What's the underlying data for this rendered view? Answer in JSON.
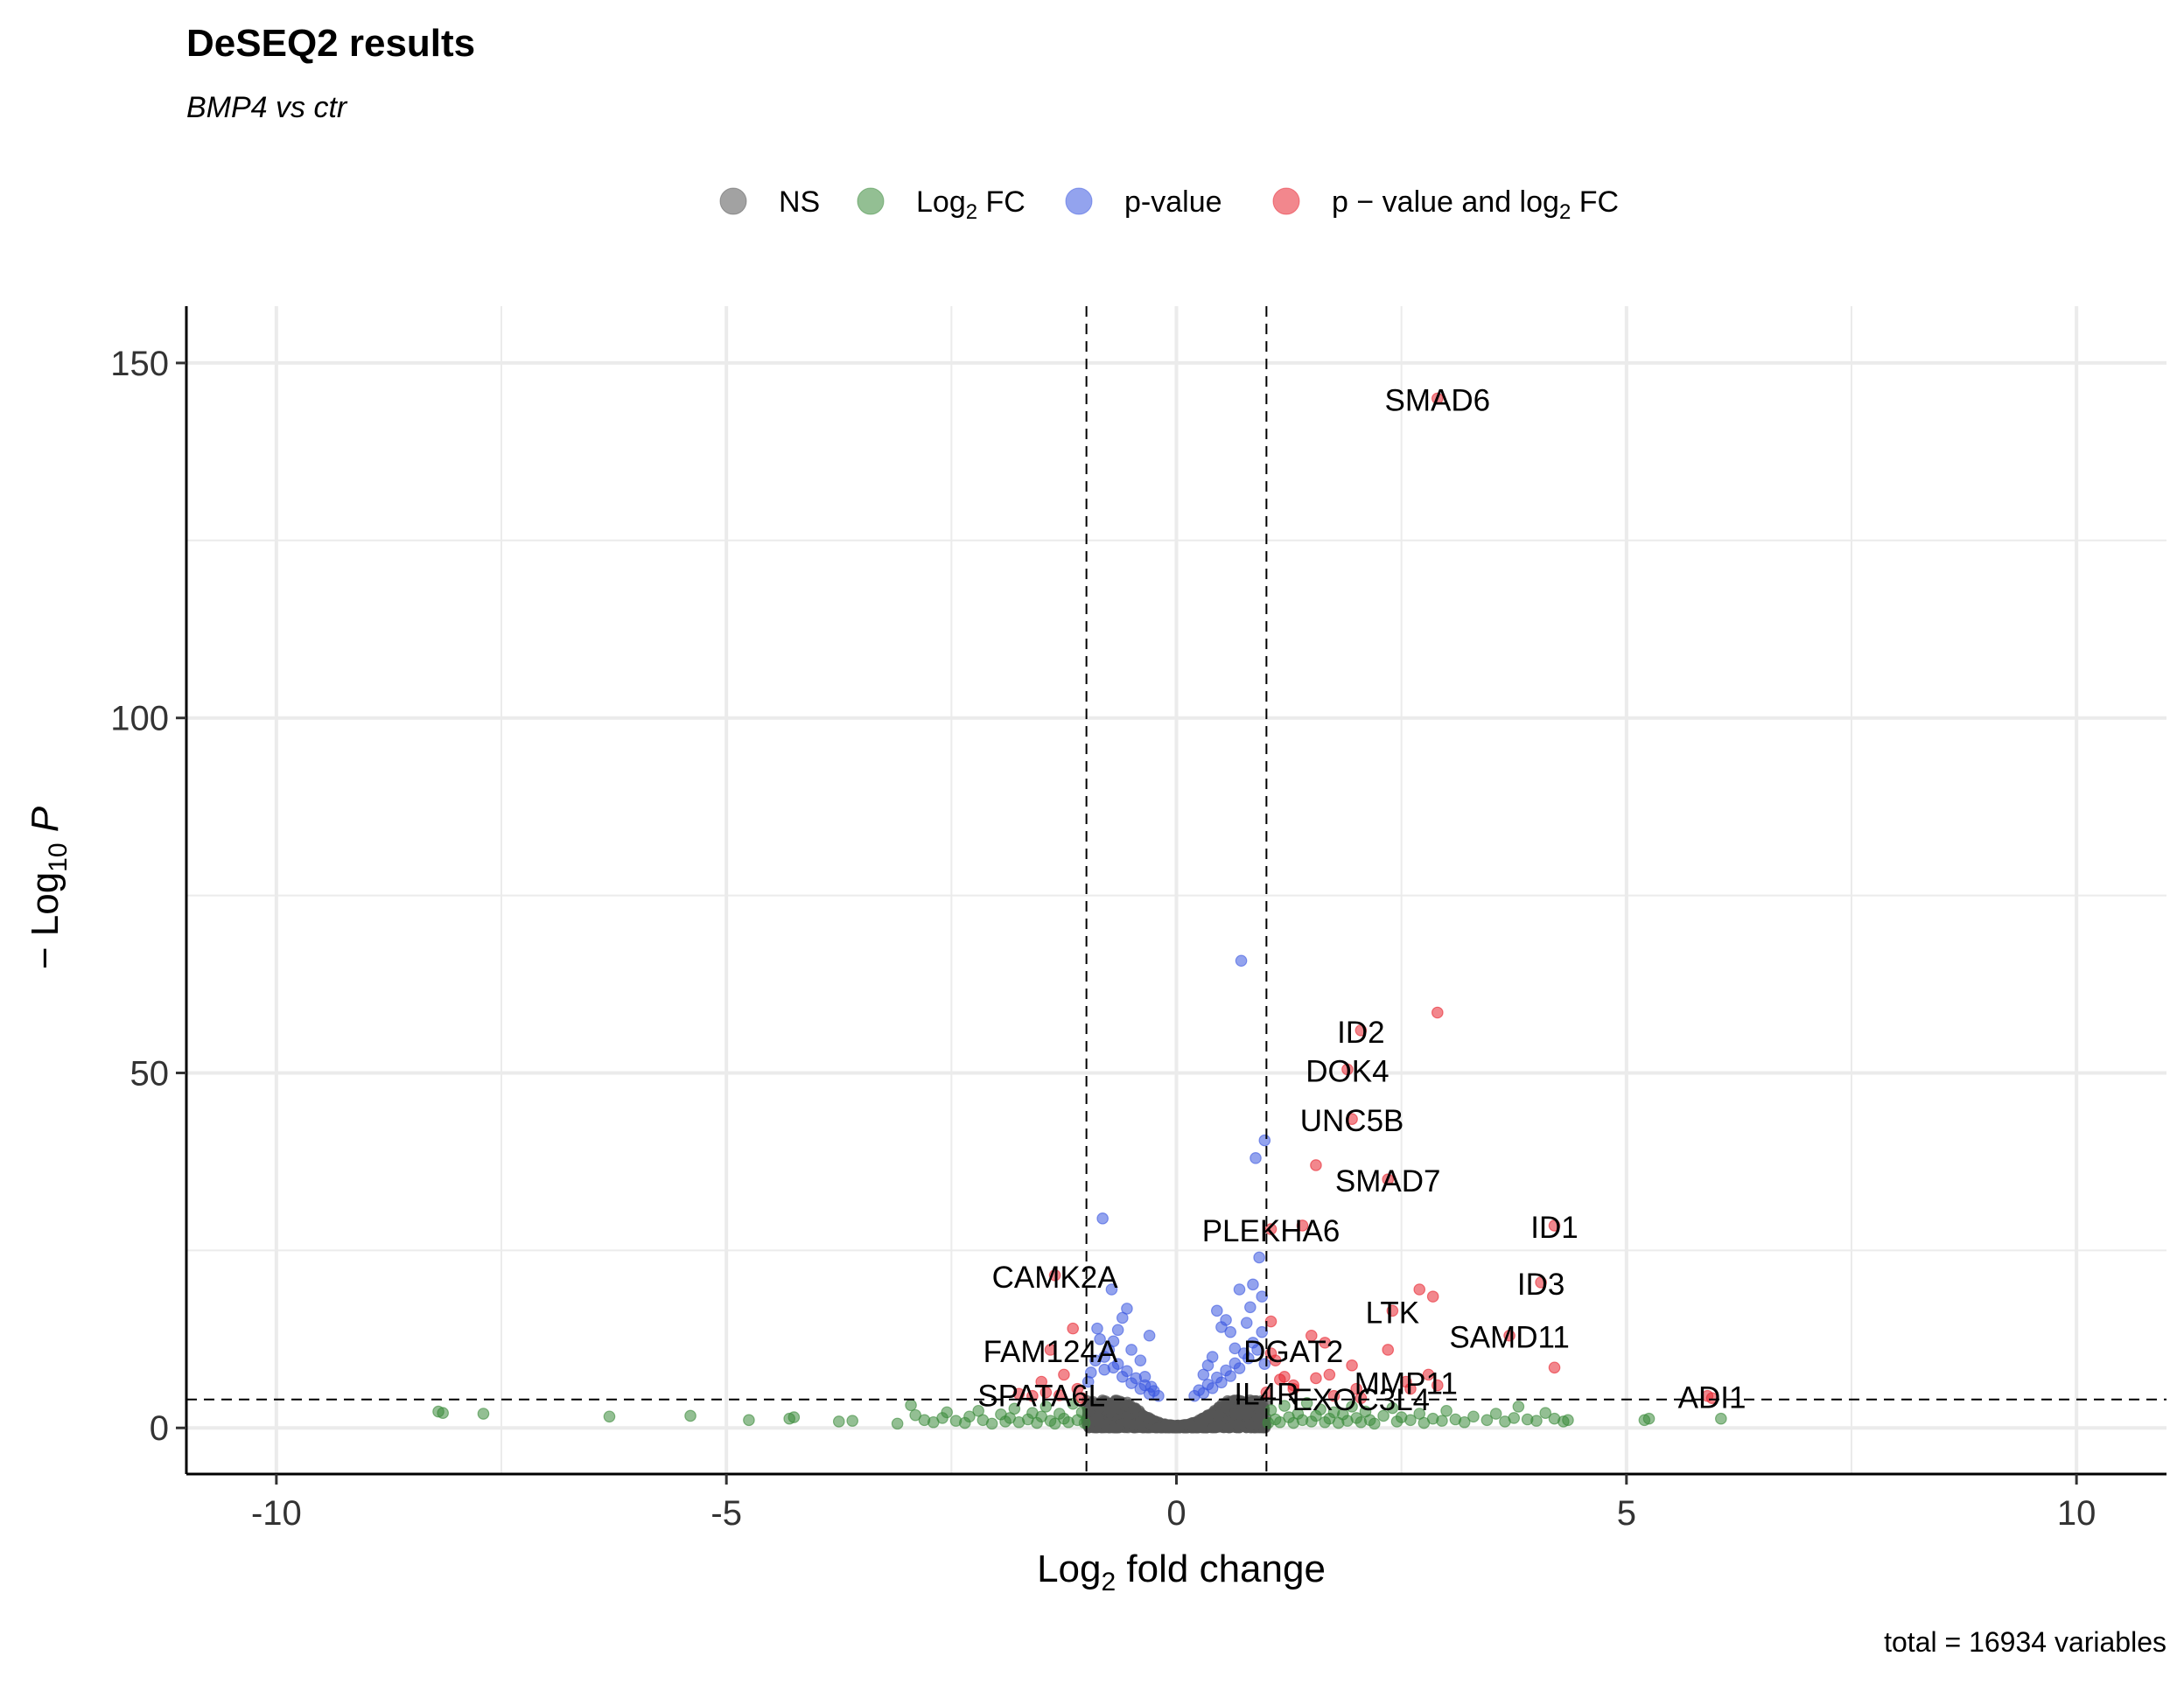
{
  "title": "DeSEQ2 results",
  "subtitle": "BMP4 vs ctr",
  "caption": "total = 16934 variables",
  "legend": {
    "position": "top",
    "items": [
      {
        "key": "ns",
        "label": "NS",
        "color": "#555555"
      },
      {
        "key": "fc",
        "label_main": "Log",
        "label_sub": "2",
        "label_tail": " FC",
        "color": "#3a8a3a"
      },
      {
        "key": "p",
        "label": "p-value",
        "color": "#3b57e0"
      },
      {
        "key": "pfc",
        "label_main": "p − value and log",
        "label_sub": "2",
        "label_tail": " FC",
        "color": "#e8242f"
      }
    ]
  },
  "chart_data": {
    "type": "scatter",
    "title": "DeSEQ2 results",
    "subtitle": "BMP4 vs ctr",
    "xlabel": {
      "main": "Log",
      "sub": "2",
      "tail": " fold change"
    },
    "ylabel": {
      "prefix": "− Log",
      "sub": "10",
      "tail": " P"
    },
    "xlim": [
      -11,
      11
    ],
    "ylim": [
      -6.5,
      158
    ],
    "xticks": [
      -10,
      -5,
      0,
      5,
      10
    ],
    "xtick_labels": [
      "-10",
      "-5",
      "0",
      "5",
      "10"
    ],
    "yticks": [
      0,
      50,
      100,
      150
    ],
    "ytick_labels": [
      "0",
      "50",
      "100",
      "150"
    ],
    "grid": true,
    "cutoffs": {
      "fc": [
        -1,
        1
      ],
      "p": 4
    },
    "colors": {
      "ns": "#555555",
      "fc": "#3a8a3a",
      "p": "#3b57e0",
      "pfc": "#e8242f"
    },
    "points": {
      "fc": [
        [
          -8.2,
          2.3
        ],
        [
          -8.15,
          2.1
        ],
        [
          -7.7,
          2.0
        ],
        [
          -6.3,
          1.6
        ],
        [
          -5.4,
          1.7
        ],
        [
          -4.75,
          1.1
        ],
        [
          -4.3,
          1.3
        ],
        [
          -4.25,
          1.5
        ],
        [
          -3.75,
          0.9
        ],
        [
          -3.6,
          1.0
        ],
        [
          -2.95,
          3.2
        ],
        [
          -2.9,
          1.8
        ],
        [
          -3.1,
          0.6
        ],
        [
          -2.8,
          1.1
        ],
        [
          -2.7,
          0.8
        ],
        [
          -2.6,
          1.4
        ],
        [
          -2.55,
          2.2
        ],
        [
          -2.45,
          1.0
        ],
        [
          -2.35,
          0.7
        ],
        [
          -2.3,
          1.6
        ],
        [
          -2.2,
          2.4
        ],
        [
          -2.15,
          1.1
        ],
        [
          -2.05,
          0.6
        ],
        [
          -1.95,
          1.9
        ],
        [
          -1.9,
          0.9
        ],
        [
          -1.85,
          1.4
        ],
        [
          -1.8,
          2.7
        ],
        [
          -1.75,
          0.8
        ],
        [
          -1.65,
          1.2
        ],
        [
          -1.6,
          2.1
        ],
        [
          -1.55,
          0.7
        ],
        [
          -1.5,
          1.6
        ],
        [
          -1.45,
          3.0
        ],
        [
          -1.4,
          1.0
        ],
        [
          -1.35,
          0.6
        ],
        [
          -1.3,
          2.0
        ],
        [
          -1.25,
          1.3
        ],
        [
          -1.2,
          0.8
        ],
        [
          -1.15,
          3.4
        ],
        [
          -1.1,
          1.1
        ],
        [
          -1.05,
          2.2
        ],
        [
          -1.02,
          0.7
        ],
        [
          1.02,
          0.7
        ],
        [
          1.05,
          2.5
        ],
        [
          1.1,
          1.2
        ],
        [
          1.15,
          0.8
        ],
        [
          1.2,
          3.1
        ],
        [
          1.25,
          1.5
        ],
        [
          1.3,
          0.7
        ],
        [
          1.35,
          2.0
        ],
        [
          1.4,
          1.1
        ],
        [
          1.45,
          3.5
        ],
        [
          1.5,
          0.9
        ],
        [
          1.55,
          1.7
        ],
        [
          1.6,
          2.6
        ],
        [
          1.65,
          0.8
        ],
        [
          1.7,
          1.3
        ],
        [
          1.75,
          2.2
        ],
        [
          1.8,
          0.7
        ],
        [
          1.85,
          1.9
        ],
        [
          1.9,
          1.0
        ],
        [
          1.95,
          3.0
        ],
        [
          2.0,
          1.4
        ],
        [
          2.05,
          0.8
        ],
        [
          2.1,
          2.3
        ],
        [
          2.15,
          1.1
        ],
        [
          2.2,
          0.6
        ],
        [
          2.3,
          1.7
        ],
        [
          2.4,
          2.8
        ],
        [
          2.45,
          0.9
        ],
        [
          2.5,
          1.5
        ],
        [
          2.6,
          1.1
        ],
        [
          2.7,
          2.0
        ],
        [
          2.75,
          0.7
        ],
        [
          2.85,
          1.3
        ],
        [
          2.95,
          1.0
        ],
        [
          3.0,
          2.4
        ],
        [
          3.1,
          1.2
        ],
        [
          3.2,
          0.8
        ],
        [
          3.3,
          1.6
        ],
        [
          3.45,
          1.1
        ],
        [
          3.55,
          2.0
        ],
        [
          3.65,
          0.9
        ],
        [
          3.75,
          1.4
        ],
        [
          3.8,
          3.0
        ],
        [
          3.9,
          1.2
        ],
        [
          4.0,
          1.0
        ],
        [
          4.1,
          2.1
        ],
        [
          4.2,
          1.3
        ],
        [
          4.3,
          0.9
        ],
        [
          4.35,
          1.1
        ],
        [
          5.2,
          1.1
        ],
        [
          5.25,
          1.3
        ],
        [
          6.05,
          1.3
        ]
      ],
      "p": [
        [
          -0.2,
          4.5
        ],
        [
          -0.25,
          5.2
        ],
        [
          -0.3,
          4.8
        ],
        [
          -0.35,
          6.0
        ],
        [
          -0.4,
          5.5
        ],
        [
          -0.45,
          7.0
        ],
        [
          -0.5,
          6.3
        ],
        [
          -0.55,
          8.0
        ],
        [
          -0.6,
          7.2
        ],
        [
          -0.65,
          9.0
        ],
        [
          -0.7,
          8.5
        ],
        [
          -0.75,
          11.0
        ],
        [
          -0.8,
          10.0
        ],
        [
          -0.85,
          12.5
        ],
        [
          -0.9,
          9.5
        ],
        [
          -0.95,
          7.8
        ],
        [
          -0.98,
          6.5
        ],
        [
          -0.6,
          15.5
        ],
        [
          -0.55,
          16.8
        ],
        [
          -0.7,
          12.2
        ],
        [
          -0.3,
          13.0
        ],
        [
          -0.8,
          8.2
        ],
        [
          -0.4,
          9.5
        ],
        [
          -0.65,
          13.8
        ],
        [
          -0.72,
          19.5
        ],
        [
          -0.82,
          29.5
        ],
        [
          -0.88,
          14.0
        ],
        [
          -0.5,
          11.0
        ],
        [
          -0.35,
          7.2
        ],
        [
          -0.28,
          5.8
        ],
        [
          0.2,
          4.5
        ],
        [
          0.25,
          5.3
        ],
        [
          0.3,
          4.9
        ],
        [
          0.35,
          6.1
        ],
        [
          0.4,
          5.6
        ],
        [
          0.45,
          7.1
        ],
        [
          0.5,
          6.4
        ],
        [
          0.55,
          8.1
        ],
        [
          0.6,
          7.3
        ],
        [
          0.65,
          9.1
        ],
        [
          0.7,
          8.4
        ],
        [
          0.75,
          10.5
        ],
        [
          0.8,
          9.8
        ],
        [
          0.85,
          12.0
        ],
        [
          0.9,
          11.0
        ],
        [
          0.95,
          13.5
        ],
        [
          0.98,
          9.0
        ],
        [
          0.6,
          13.5
        ],
        [
          0.5,
          14.2
        ],
        [
          0.45,
          16.5
        ],
        [
          0.55,
          15.2
        ],
        [
          0.7,
          19.5
        ],
        [
          0.85,
          20.2
        ],
        [
          0.92,
          24.0
        ],
        [
          0.88,
          38.0
        ],
        [
          0.98,
          40.5
        ],
        [
          0.72,
          65.8
        ],
        [
          0.65,
          11.2
        ],
        [
          0.78,
          14.8
        ],
        [
          0.4,
          10.0
        ],
        [
          0.3,
          7.5
        ],
        [
          0.82,
          17.0
        ],
        [
          0.95,
          18.5
        ],
        [
          0.35,
          8.8
        ]
      ],
      "pfc": [
        [
          2.9,
          145
        ],
        [
          2.9,
          58.5
        ],
        [
          2.05,
          56.0
        ],
        [
          1.9,
          50.5
        ],
        [
          1.95,
          43.5
        ],
        [
          1.55,
          37.0
        ],
        [
          2.35,
          35.0
        ],
        [
          1.4,
          28.5
        ],
        [
          1.05,
          28.0
        ],
        [
          4.2,
          28.5
        ],
        [
          4.05,
          20.5
        ],
        [
          2.7,
          19.5
        ],
        [
          2.85,
          18.5
        ],
        [
          2.4,
          16.5
        ],
        [
          1.05,
          15.0
        ],
        [
          1.5,
          13.0
        ],
        [
          1.65,
          12.0
        ],
        [
          3.7,
          13.0
        ],
        [
          2.35,
          11.0
        ],
        [
          4.2,
          8.5
        ],
        [
          1.95,
          8.8
        ],
        [
          1.7,
          7.5
        ],
        [
          1.2,
          7.2
        ],
        [
          1.15,
          6.8
        ],
        [
          1.55,
          7.0
        ],
        [
          2.0,
          5.5
        ],
        [
          1.0,
          5.0
        ],
        [
          1.3,
          5.5
        ],
        [
          2.8,
          7.5
        ],
        [
          2.55,
          6.5
        ],
        [
          2.9,
          6.0
        ],
        [
          2.6,
          5.5
        ],
        [
          1.3,
          6.0
        ],
        [
          1.1,
          9.5
        ],
        [
          1.05,
          10.5
        ],
        [
          1.75,
          4.5
        ],
        [
          2.05,
          4.2
        ],
        [
          5.9,
          4.5
        ],
        [
          5.95,
          4.2
        ],
        [
          -1.35,
          21.5
        ],
        [
          -1.15,
          14.0
        ],
        [
          -1.4,
          11.0
        ],
        [
          -1.25,
          7.5
        ],
        [
          -1.5,
          6.5
        ],
        [
          -1.45,
          5.0
        ],
        [
          -1.6,
          4.5
        ],
        [
          -1.1,
          5.5
        ],
        [
          -1.05,
          4.2
        ],
        [
          -1.3,
          4.6
        ],
        [
          -1.75,
          4.8
        ]
      ],
      "ns_band": {
        "count": 1200,
        "x_range": [
          -1,
          1
        ],
        "y_max": 4
      }
    },
    "labels": [
      {
        "text": "SMAD6",
        "x": 2.9,
        "y": 145
      },
      {
        "text": "ID2",
        "x": 2.05,
        "y": 56
      },
      {
        "text": "DOK4",
        "x": 1.9,
        "y": 50.5
      },
      {
        "text": "UNC5B",
        "x": 1.95,
        "y": 43.5
      },
      {
        "text": "SMAD7",
        "x": 2.35,
        "y": 35
      },
      {
        "text": "ID1",
        "x": 4.2,
        "y": 28.5
      },
      {
        "text": "PLEKHA6",
        "x": 1.05,
        "y": 28
      },
      {
        "text": "CAMK2A",
        "x": -1.35,
        "y": 21.5
      },
      {
        "text": "ID3",
        "x": 4.05,
        "y": 20.5
      },
      {
        "text": "LTK",
        "x": 2.4,
        "y": 16.5
      },
      {
        "text": "SAMD11",
        "x": 3.7,
        "y": 13
      },
      {
        "text": "DGAT2",
        "x": 1.3,
        "y": 11
      },
      {
        "text": "FAM124A",
        "x": -1.4,
        "y": 11
      },
      {
        "text": "MMP11",
        "x": 2.55,
        "y": 6.5
      },
      {
        "text": "SPATA6L",
        "x": -1.5,
        "y": 4.8
      },
      {
        "text": "IL4R",
        "x": 1.0,
        "y": 5
      },
      {
        "text": "EXOC3L4",
        "x": 2.05,
        "y": 4.2
      },
      {
        "text": "ADI1",
        "x": 5.95,
        "y": 4.5
      }
    ]
  }
}
